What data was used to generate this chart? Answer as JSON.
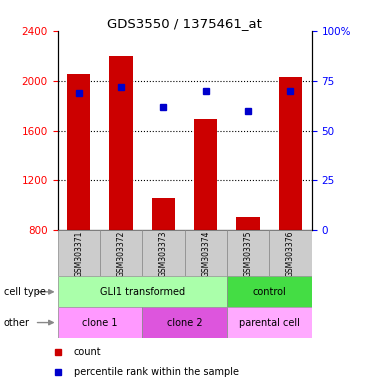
{
  "title": "GDS3550 / 1375461_at",
  "samples": [
    "GSM303371",
    "GSM303372",
    "GSM303373",
    "GSM303374",
    "GSM303375",
    "GSM303376"
  ],
  "counts": [
    2050,
    2200,
    1060,
    1690,
    910,
    2030
  ],
  "percentile_ranks": [
    69,
    72,
    62,
    70,
    60,
    70
  ],
  "ylim_left": [
    800,
    2400
  ],
  "ylim_right": [
    0,
    100
  ],
  "yticks_left": [
    800,
    1200,
    1600,
    2000,
    2400
  ],
  "yticks_right": [
    0,
    25,
    50,
    75,
    100
  ],
  "bar_color": "#cc0000",
  "dot_color": "#0000cc",
  "cell_boundaries": [
    {
      "xmin": -0.5,
      "xmax": 3.5,
      "label": "GLI1 transformed",
      "color": "#aaffaa"
    },
    {
      "xmin": 3.5,
      "xmax": 5.5,
      "label": "control",
      "color": "#44dd44"
    }
  ],
  "other_boundaries": [
    {
      "xmin": -0.5,
      "xmax": 1.5,
      "label": "clone 1",
      "color": "#ff99ff"
    },
    {
      "xmin": 1.5,
      "xmax": 3.5,
      "label": "clone 2",
      "color": "#dd55dd"
    },
    {
      "xmin": 3.5,
      "xmax": 5.5,
      "label": "parental cell",
      "color": "#ffaaff"
    }
  ],
  "bar_width": 0.55,
  "figsize": [
    3.71,
    3.84
  ],
  "dpi": 100
}
